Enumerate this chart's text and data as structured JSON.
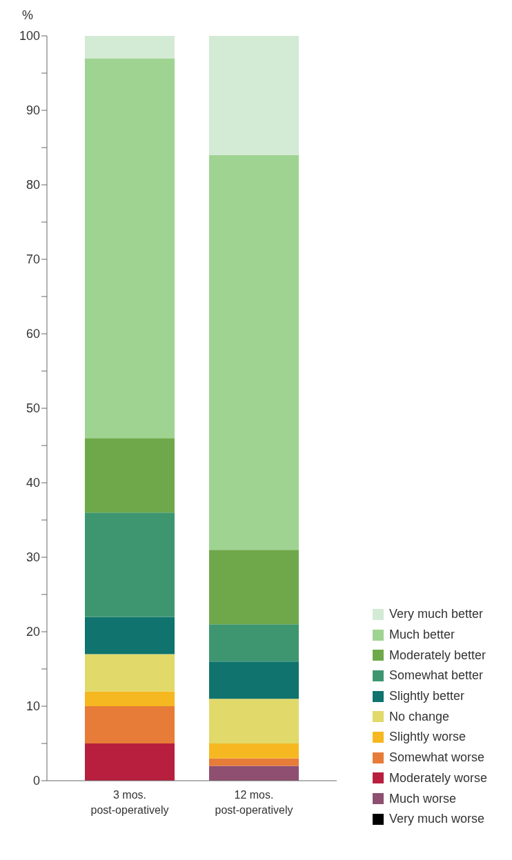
{
  "chart_data": {
    "type": "bar",
    "stacked": true,
    "ylabel": "%",
    "categories": [
      "3 mos.\npost-operatively",
      "12 mos.\npost-operatively"
    ],
    "series": [
      {
        "name": "Very much worse",
        "color": "#000000",
        "values": [
          0,
          0
        ]
      },
      {
        "name": "Much worse",
        "color": "#8f4f70",
        "values": [
          0,
          2
        ]
      },
      {
        "name": "Moderately worse",
        "color": "#b81f3e",
        "values": [
          5,
          0
        ]
      },
      {
        "name": "Somewhat worse",
        "color": "#e67c37",
        "values": [
          5,
          1
        ]
      },
      {
        "name": "Slightly worse",
        "color": "#f5b820",
        "values": [
          2,
          2
        ]
      },
      {
        "name": "No change",
        "color": "#e1d96a",
        "values": [
          5,
          6
        ]
      },
      {
        "name": "Slightly better",
        "color": "#10736d",
        "values": [
          5,
          5
        ]
      },
      {
        "name": "Somewhat better",
        "color": "#3d9670",
        "values": [
          14,
          5
        ]
      },
      {
        "name": "Moderately better",
        "color": "#6fa84a",
        "values": [
          10,
          10
        ]
      },
      {
        "name": "Much better",
        "color": "#9fd391",
        "values": [
          51,
          53
        ]
      },
      {
        "name": "Very much better",
        "color": "#d3ead4",
        "values": [
          3,
          16
        ]
      }
    ],
    "ylim": [
      0,
      100
    ],
    "yticks": [
      0,
      {
        "value": 5,
        "label": null
      },
      10,
      {
        "value": 15,
        "label": null
      },
      20,
      {
        "value": 25,
        "label": null
      },
      30,
      {
        "value": 35,
        "label": null
      },
      40,
      {
        "value": 45,
        "label": null
      },
      50,
      {
        "value": 55,
        "label": null
      },
      60,
      {
        "value": 65,
        "label": null
      },
      70,
      {
        "value": 75,
        "label": null
      },
      80,
      {
        "value": 85,
        "label": null
      },
      90,
      {
        "value": 95,
        "label": null
      },
      100
    ],
    "grid": false,
    "legend": "bottom right"
  }
}
